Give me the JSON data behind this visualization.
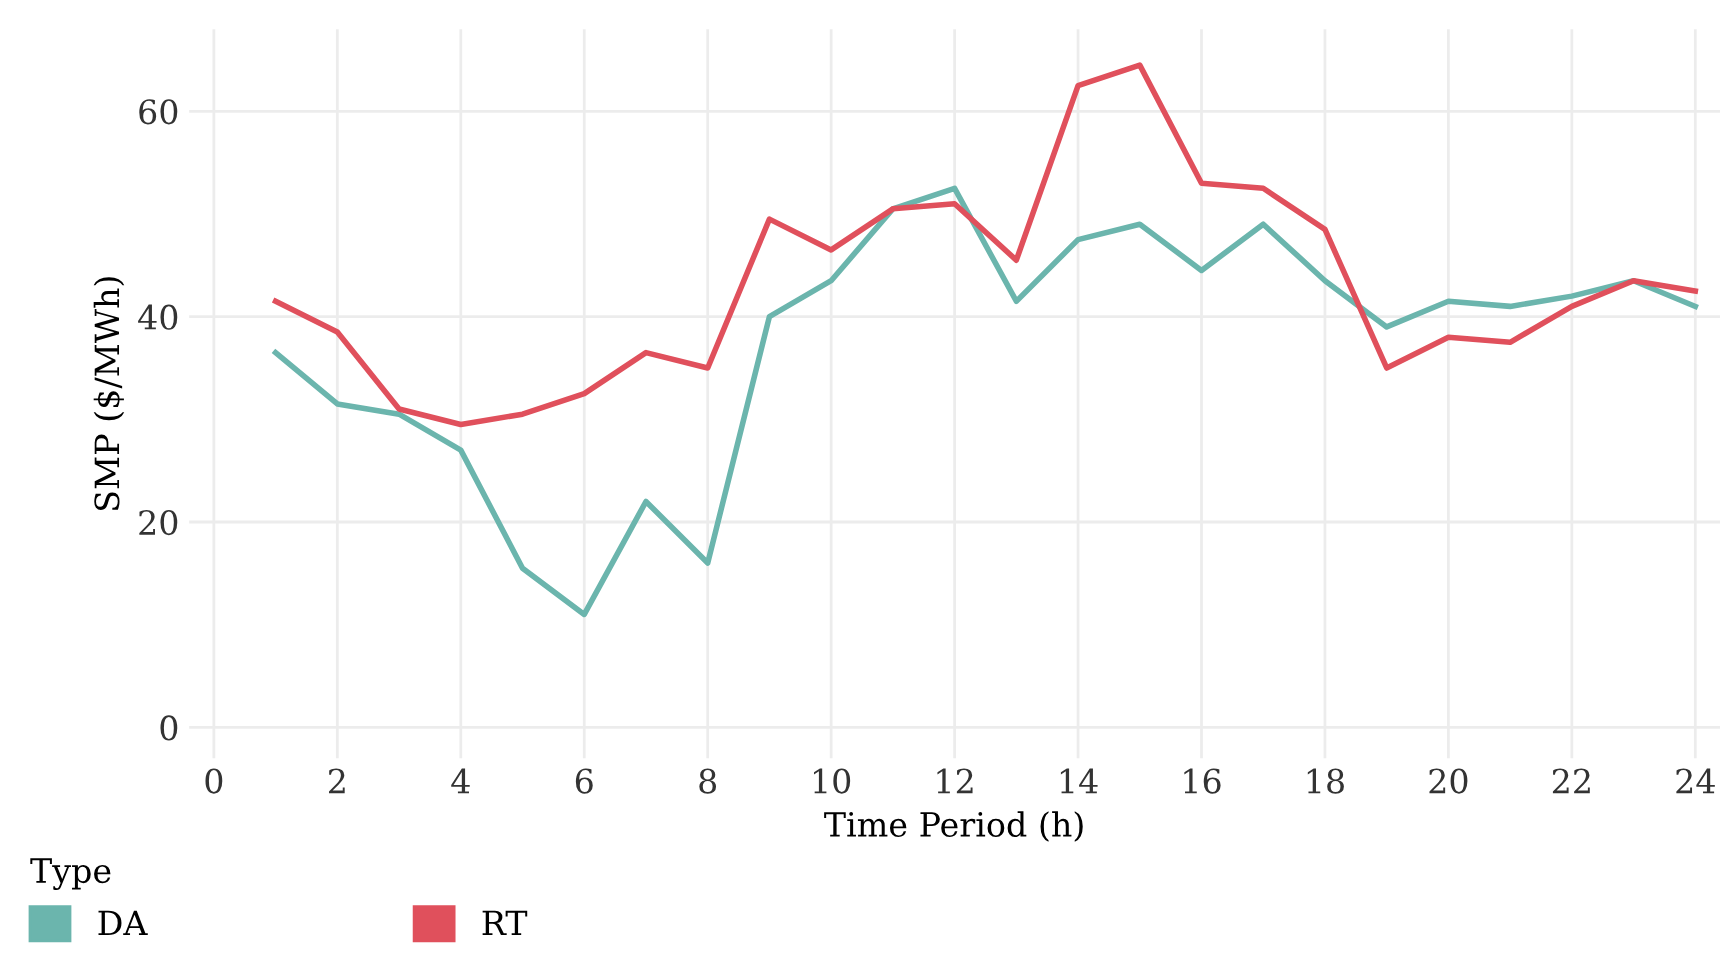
{
  "chart_data": {
    "type": "line",
    "xlabel": "Time Period (h)",
    "ylabel": "SMP ($/MWh)",
    "legend_title": "Type",
    "legend": "bottom",
    "grid": true,
    "line_style": "solid",
    "x": [
      1,
      2,
      3,
      4,
      5,
      6,
      7,
      8,
      9,
      10,
      11,
      12,
      13,
      14,
      15,
      16,
      17,
      18,
      19,
      20,
      21,
      22,
      23,
      24
    ],
    "xlim": [
      -0.4,
      24.4
    ],
    "xticks": [
      0,
      2,
      4,
      6,
      8,
      10,
      12,
      14,
      16,
      18,
      20,
      22,
      24
    ],
    "ylim": [
      -3,
      68
    ],
    "yticks": [
      0,
      20,
      40,
      60
    ],
    "series": [
      {
        "name": "DA",
        "color": "#6bb5ad",
        "values": [
          36.5,
          31.5,
          30.5,
          27,
          15.5,
          11,
          22,
          16,
          40,
          43.5,
          50.5,
          52.5,
          41.5,
          47.5,
          49,
          44.5,
          49,
          43.5,
          39,
          41.5,
          41,
          42,
          43.5,
          41
        ]
      },
      {
        "name": "RT",
        "color": "#e0505c",
        "values": [
          41.5,
          38.5,
          31,
          29.5,
          30.5,
          32.5,
          36.5,
          35,
          49.5,
          46.5,
          50.5,
          51,
          45.5,
          62.5,
          64.5,
          53,
          52.5,
          48.5,
          35,
          38,
          37.5,
          41,
          43.5,
          42.5
        ]
      }
    ]
  }
}
